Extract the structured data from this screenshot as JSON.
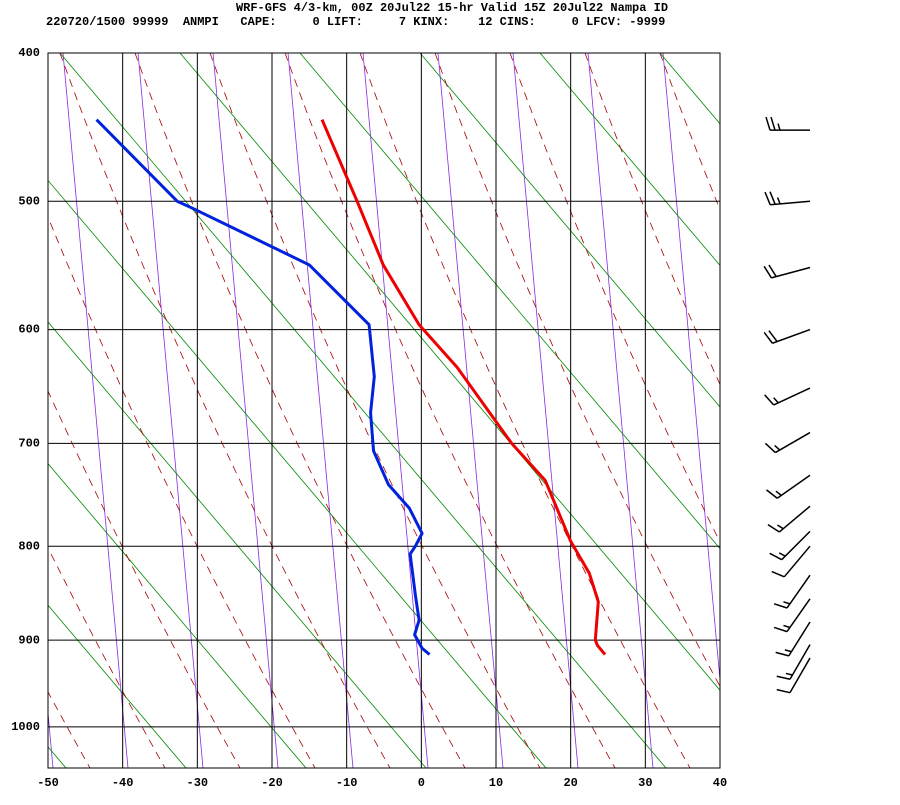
{
  "chart_data": {
    "type": "line",
    "title": "WRF-GFS 4/3-km, 00Z 20Jul22 15-hr Valid 15Z 20Jul22 Nampa ID",
    "subtitle": "220720/1500 99999  ANMPI   CAPE:     0 LIFT:     7 KINX:    12 CINS:     0 LFCV: -9999",
    "xlim": [
      -50,
      40
    ],
    "xticks": [
      -50,
      -40,
      -30,
      -20,
      -10,
      0,
      10,
      20,
      30,
      40
    ],
    "ylim": [
      1050,
      400
    ],
    "yticks": [
      400,
      500,
      600,
      700,
      800,
      900,
      1000
    ],
    "grid": true,
    "series": [
      {
        "color": "#ee0000",
        "x": [
          -13.3,
          -8.6,
          -5.1,
          -0.3,
          4.8,
          12.1,
          16.6,
          20,
          22.5,
          23.7,
          23.3,
          23.6,
          24.6
        ],
        "y": [
          443,
          500,
          548,
          596,
          632,
          700,
          735,
          795,
          828,
          858,
          900,
          906,
          916
        ]
      },
      {
        "color": "#0022dd",
        "x": [
          -43.5,
          -32.7,
          -30.7,
          -15,
          -7,
          -6.3,
          -6.8,
          -6.4,
          -4.4,
          -1.6,
          0.1,
          -0.8,
          -1.5,
          -0.8,
          -0.3,
          -0.9,
          0.1,
          1.1
        ],
        "y": [
          443,
          500,
          505,
          548,
          596,
          640,
          672,
          707,
          739,
          762,
          787,
          800,
          808,
          851,
          878,
          894,
          909,
          916
        ]
      }
    ],
    "winds": {
      "pressure": [
        450,
        500,
        550,
        600,
        650,
        690,
        730,
        760,
        785,
        800,
        830,
        855,
        880,
        905,
        920
      ],
      "direction": [
        270,
        265,
        255,
        250,
        245,
        240,
        235,
        230,
        225,
        220,
        215,
        215,
        212,
        210,
        210
      ],
      "speed": [
        25,
        25,
        20,
        20,
        15,
        15,
        15,
        15,
        15,
        10,
        15,
        15,
        15,
        15,
        10
      ]
    }
  }
}
